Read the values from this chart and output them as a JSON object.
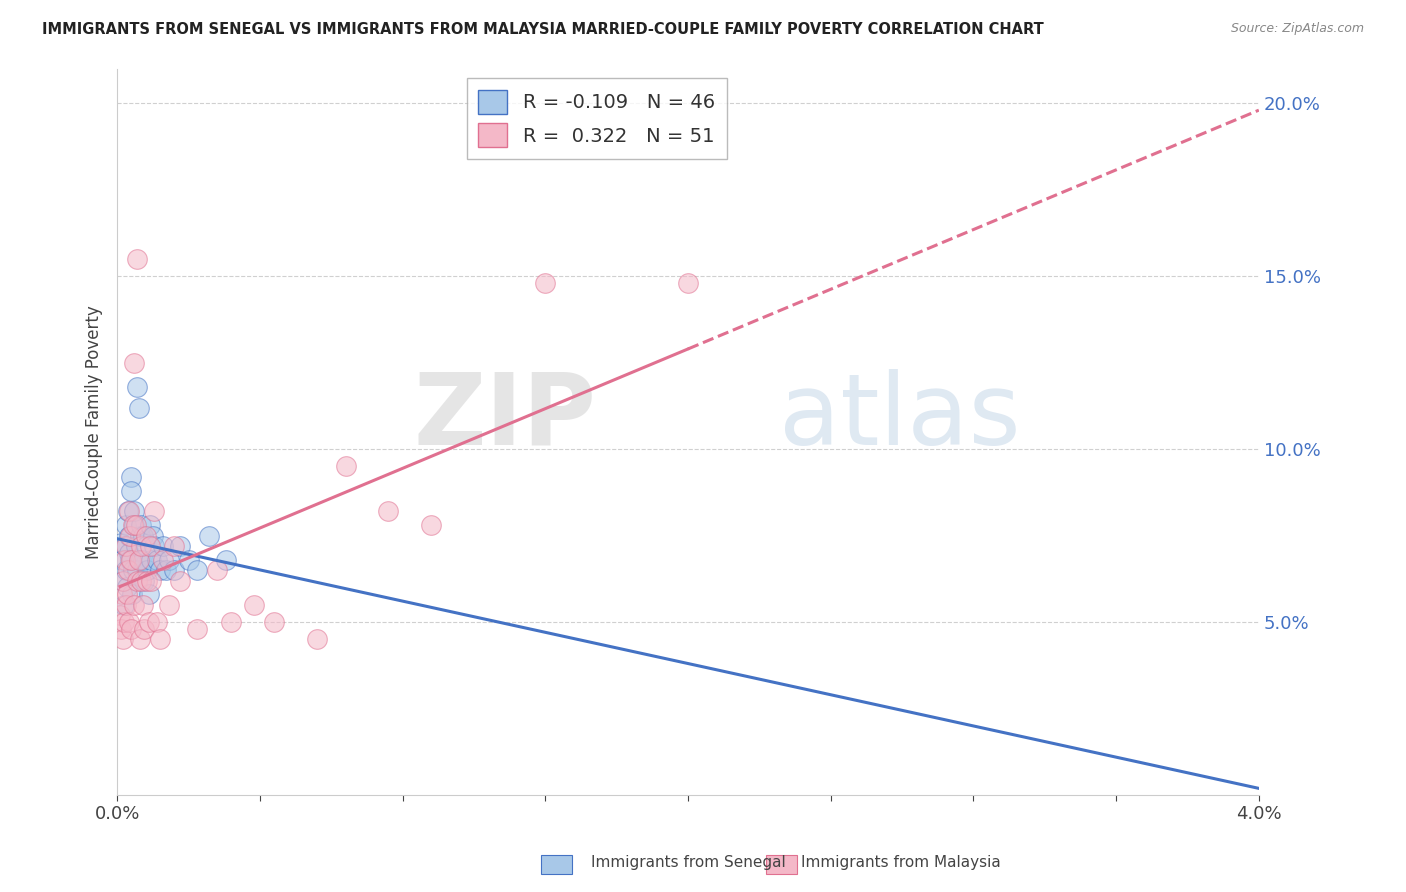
{
  "title": "IMMIGRANTS FROM SENEGAL VS IMMIGRANTS FROM MALAYSIA MARRIED-COUPLE FAMILY POVERTY CORRELATION CHART",
  "source": "Source: ZipAtlas.com",
  "ylabel": "Married-Couple Family Poverty",
  "watermark": "ZIPatlas",
  "xlim": [
    0.0,
    0.04
  ],
  "ylim": [
    0.0,
    0.21
  ],
  "xticks": [
    0.0,
    0.005,
    0.01,
    0.015,
    0.02,
    0.025,
    0.03,
    0.035,
    0.04
  ],
  "yticks_right": [
    0.05,
    0.1,
    0.15,
    0.2
  ],
  "ytick_right_labels": [
    "5.0%",
    "10.0%",
    "15.0%",
    "20.0%"
  ],
  "legend_blue_r": "-0.109",
  "legend_blue_n": "46",
  "legend_pink_r": "0.322",
  "legend_pink_n": "51",
  "senegal_label": "Immigrants from Senegal",
  "malaysia_label": "Immigrants from Malaysia",
  "blue_color": "#a8c8e8",
  "pink_color": "#f4b8c8",
  "blue_line_color": "#4472c4",
  "pink_line_color": "#e07090",
  "background_color": "#ffffff",
  "grid_color": "#d0d0d0",
  "senegal_x": [
    0.00015,
    0.00018,
    0.00022,
    0.00025,
    0.00028,
    0.0003,
    0.00032,
    0.00035,
    0.00038,
    0.0004,
    0.00042,
    0.00045,
    0.00048,
    0.0005,
    0.00052,
    0.00055,
    0.00058,
    0.0006,
    0.00065,
    0.00068,
    0.0007,
    0.00075,
    0.0008,
    0.00082,
    0.00085,
    0.0009,
    0.00092,
    0.00095,
    0.001,
    0.00105,
    0.0011,
    0.00115,
    0.0012,
    0.00125,
    0.0013,
    0.0014,
    0.0015,
    0.0016,
    0.0017,
    0.0018,
    0.002,
    0.0022,
    0.0025,
    0.0028,
    0.0032,
    0.0038
  ],
  "senegal_y": [
    0.073,
    0.068,
    0.062,
    0.055,
    0.072,
    0.078,
    0.065,
    0.06,
    0.082,
    0.075,
    0.07,
    0.068,
    0.092,
    0.088,
    0.058,
    0.065,
    0.078,
    0.082,
    0.072,
    0.065,
    0.118,
    0.112,
    0.075,
    0.068,
    0.078,
    0.068,
    0.075,
    0.062,
    0.072,
    0.065,
    0.058,
    0.078,
    0.068,
    0.075,
    0.072,
    0.068,
    0.065,
    0.072,
    0.065,
    0.068,
    0.065,
    0.072,
    0.068,
    0.065,
    0.075,
    0.068
  ],
  "malaysia_x": [
    0.0001,
    0.00015,
    0.00018,
    0.0002,
    0.00022,
    0.00025,
    0.00028,
    0.0003,
    0.00032,
    0.00035,
    0.00038,
    0.0004,
    0.00042,
    0.00045,
    0.00048,
    0.0005,
    0.00055,
    0.00058,
    0.0006,
    0.00065,
    0.00068,
    0.0007,
    0.00075,
    0.0008,
    0.00082,
    0.00085,
    0.0009,
    0.00095,
    0.001,
    0.00105,
    0.0011,
    0.00115,
    0.0012,
    0.0013,
    0.0014,
    0.0015,
    0.0016,
    0.0018,
    0.002,
    0.0022,
    0.0028,
    0.0035,
    0.004,
    0.0048,
    0.0055,
    0.007,
    0.008,
    0.0095,
    0.011,
    0.015,
    0.02
  ],
  "malaysia_y": [
    0.052,
    0.048,
    0.058,
    0.045,
    0.062,
    0.05,
    0.068,
    0.055,
    0.072,
    0.058,
    0.065,
    0.05,
    0.082,
    0.075,
    0.068,
    0.048,
    0.078,
    0.055,
    0.125,
    0.078,
    0.062,
    0.155,
    0.068,
    0.045,
    0.072,
    0.062,
    0.055,
    0.048,
    0.075,
    0.062,
    0.05,
    0.072,
    0.062,
    0.082,
    0.05,
    0.045,
    0.068,
    0.055,
    0.072,
    0.062,
    0.048,
    0.065,
    0.05,
    0.055,
    0.05,
    0.045,
    0.095,
    0.082,
    0.078,
    0.148,
    0.148
  ]
}
